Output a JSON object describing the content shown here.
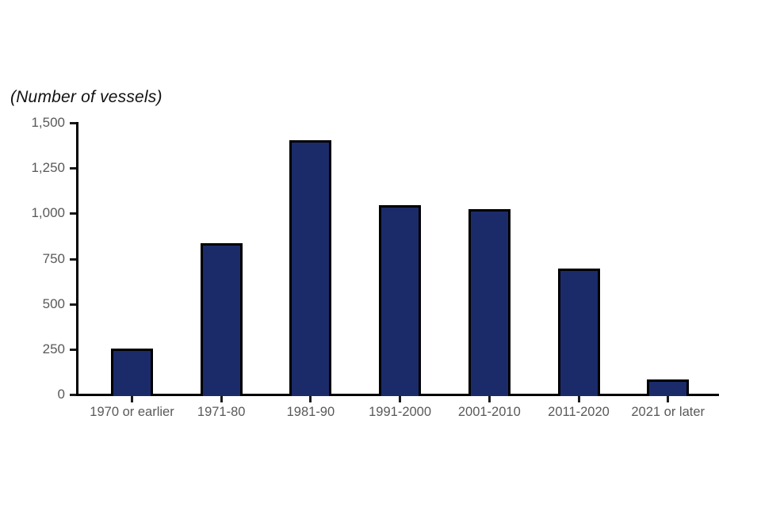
{
  "chart_data": {
    "type": "bar",
    "title": "(Number of vessels)",
    "categories": [
      "1970 or earlier",
      "1971-80",
      "1981-90",
      "1991-2000",
      "2001-2010",
      "2011-2020",
      "2021 or later"
    ],
    "values": [
      250,
      830,
      1400,
      1040,
      1020,
      690,
      80
    ],
    "xlabel": "",
    "ylabel": "",
    "ylim": [
      0,
      1500
    ],
    "y_ticks": [
      0,
      250,
      500,
      750,
      1000,
      1250,
      1500
    ],
    "y_tick_labels": [
      "0",
      "250",
      "500",
      "750",
      "1,000",
      "1,250",
      "1,500"
    ],
    "grid": false,
    "legend": "none",
    "bar_color": "#1b2b6a",
    "bar_border_color": "#000000",
    "axis_color": "#000000",
    "tick_label_color": "#595959"
  }
}
